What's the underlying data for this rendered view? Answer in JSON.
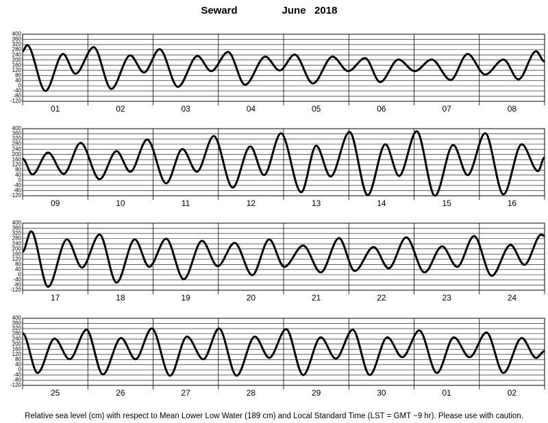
{
  "title": "Seward",
  "subtitle": "June   2018",
  "footnote": "Relative sea level (cm) with respect to Mean Lower Low Water (189 cm) and Local Standard Time (LST = GMT −9 hr). Please use with caution.",
  "chart_data": [
    {
      "type": "line",
      "categories": [
        "01",
        "02",
        "03",
        "04",
        "05",
        "06",
        "07",
        "08"
      ],
      "xlim": [
        0,
        8
      ],
      "ylim": [
        -120,
        400
      ],
      "yticks": [
        -120,
        -80,
        -40,
        0,
        40,
        80,
        120,
        160,
        200,
        240,
        280,
        320,
        360,
        400
      ],
      "grid": true,
      "x": [
        0,
        0.07,
        0.35,
        0.62,
        0.81,
        1.09,
        1.36,
        1.65,
        1.86,
        2.1,
        2.38,
        2.68,
        2.89,
        3.15,
        3.41,
        3.72,
        3.94,
        4.17,
        4.45,
        4.75,
        4.99,
        5.25,
        5.48,
        5.76,
        6.01,
        6.27,
        6.56,
        6.82,
        7.09,
        7.37,
        7.6,
        7.87,
        8
      ],
      "series": [
        {
          "color": "#000000",
          "values": [
            268,
            316,
            -40,
            247,
            93,
            300,
            -24,
            236,
            103,
            284,
            -8,
            231,
            114,
            263,
            8,
            226,
            119,
            242,
            18,
            226,
            114,
            215,
            29,
            204,
            114,
            204,
            45,
            247,
            87,
            204,
            50,
            268,
            188
          ]
        }
      ]
    },
    {
      "type": "line",
      "categories": [
        "09",
        "10",
        "11",
        "12",
        "13",
        "14",
        "15",
        "16"
      ],
      "xlim": [
        0,
        8
      ],
      "ylim": [
        -120,
        400
      ],
      "yticks": [
        -120,
        -80,
        -40,
        0,
        40,
        80,
        120,
        160,
        200,
        240,
        280,
        320,
        360,
        400
      ],
      "grid": true,
      "x": [
        0,
        0.15,
        0.39,
        0.63,
        0.89,
        1.18,
        1.44,
        1.65,
        1.91,
        2.2,
        2.45,
        2.67,
        2.93,
        3.22,
        3.49,
        3.7,
        3.96,
        4.27,
        4.5,
        4.72,
        5.01,
        5.29,
        5.56,
        5.77,
        6.04,
        6.32,
        6.6,
        6.82,
        7.09,
        7.37,
        7.65,
        7.9,
        8
      ],
      "series": [
        {
          "color": "#000000",
          "values": [
            167,
            45,
            215,
            50,
            290,
            8,
            226,
            66,
            316,
            -24,
            242,
            66,
            343,
            -56,
            263,
            40,
            364,
            -93,
            268,
            29,
            375,
            -115,
            279,
            34,
            380,
            -120,
            274,
            40,
            364,
            -109,
            279,
            71,
            178
          ]
        }
      ]
    },
    {
      "type": "line",
      "categories": [
        "17",
        "18",
        "19",
        "20",
        "21",
        "22",
        "23",
        "24"
      ],
      "xlim": [
        0,
        8
      ],
      "ylim": [
        -120,
        400
      ],
      "yticks": [
        -120,
        -80,
        -40,
        0,
        40,
        80,
        120,
        160,
        200,
        240,
        280,
        320,
        360,
        400
      ],
      "grid": true,
      "x": [
        0,
        0.13,
        0.39,
        0.68,
        0.91,
        1.18,
        1.44,
        1.72,
        1.94,
        2.2,
        2.47,
        2.75,
        2.99,
        3.25,
        3.52,
        3.78,
        4.01,
        4.3,
        4.57,
        4.85,
        5.09,
        5.38,
        5.61,
        5.88,
        6.16,
        6.43,
        6.66,
        6.92,
        7.19,
        7.48,
        7.69,
        7.95,
        8
      ],
      "series": [
        {
          "color": "#000000",
          "values": [
            178,
            337,
            -93,
            274,
            56,
            311,
            -61,
            274,
            61,
            279,
            -35,
            263,
            66,
            247,
            -3,
            274,
            61,
            226,
            18,
            284,
            29,
            215,
            50,
            290,
            18,
            220,
            61,
            300,
            -8,
            231,
            77,
            311,
            300
          ]
        }
      ]
    },
    {
      "type": "line",
      "categories": [
        "25",
        "26",
        "27",
        "28",
        "29",
        "30",
        "01",
        "02"
      ],
      "xlim": [
        0,
        8
      ],
      "ylim": [
        -120,
        400
      ],
      "yticks": [
        -120,
        -80,
        -40,
        0,
        40,
        80,
        120,
        160,
        200,
        240,
        280,
        320,
        360,
        400
      ],
      "grid": true,
      "x": [
        0,
        0.23,
        0.49,
        0.72,
        0.98,
        1.23,
        1.51,
        1.73,
        1.98,
        2.26,
        2.52,
        2.77,
        3.01,
        3.28,
        3.56,
        3.78,
        4.04,
        4.3,
        4.57,
        4.8,
        5.06,
        5.32,
        5.59,
        5.82,
        6.08,
        6.35,
        6.61,
        6.85,
        7.11,
        7.37,
        7.65,
        7.87,
        8
      ],
      "series": [
        {
          "color": "#000000",
          "values": [
            284,
            -24,
            242,
            82,
            311,
            -35,
            247,
            82,
            321,
            -45,
            258,
            82,
            321,
            -45,
            258,
            93,
            316,
            -40,
            252,
            87,
            311,
            -40,
            252,
            98,
            306,
            -24,
            252,
            98,
            290,
            -24,
            247,
            93,
            146
          ]
        }
      ]
    }
  ]
}
